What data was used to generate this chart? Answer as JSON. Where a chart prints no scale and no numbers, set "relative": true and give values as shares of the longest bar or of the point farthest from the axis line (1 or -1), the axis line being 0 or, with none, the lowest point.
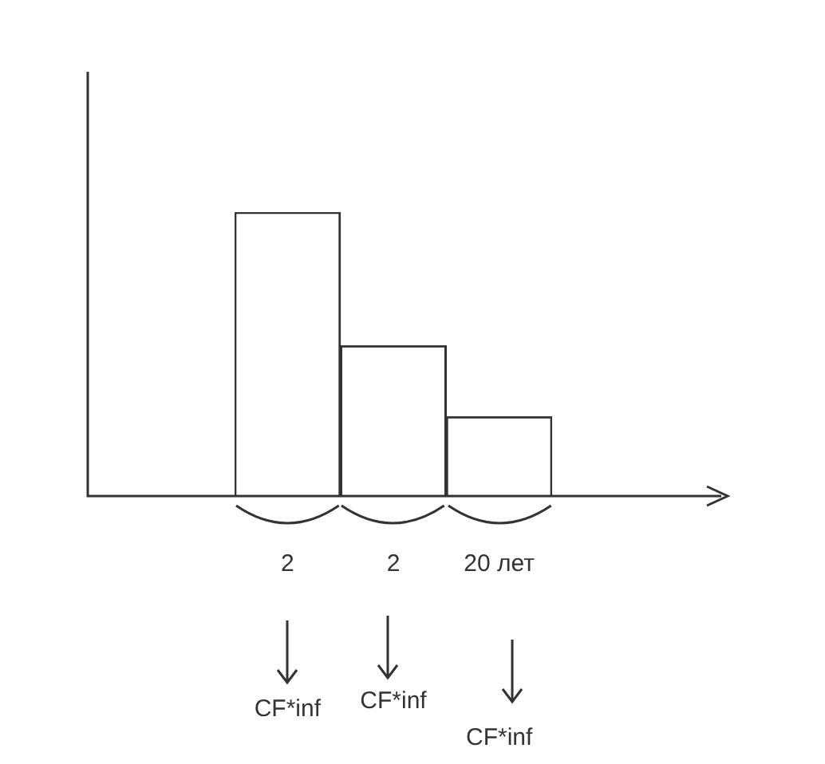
{
  "chart_data": {
    "type": "bar",
    "relative": true,
    "categories": [
      "2",
      "2",
      "20 лет"
    ],
    "values": [
      1,
      0.53,
      0.28
    ],
    "color": "#ffffff",
    "annotations": [
      "CF*inf",
      "CF*inf",
      "CF*inf"
    ],
    "grid": false,
    "legend": false
  }
}
